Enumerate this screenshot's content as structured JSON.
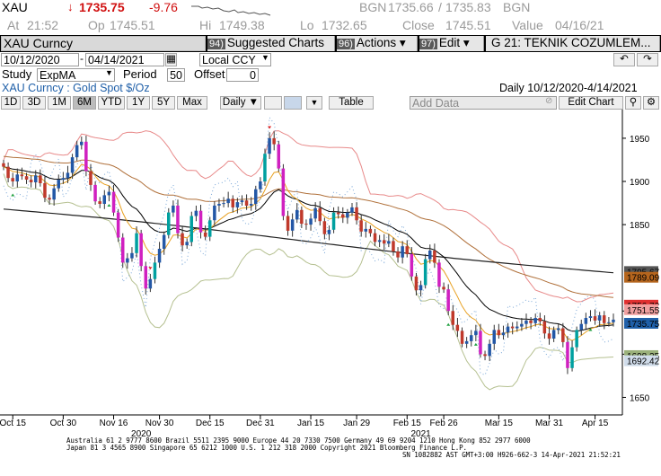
{
  "quote": {
    "symbol": "XAU",
    "arrow": "↓",
    "last": "1735.75",
    "change": "-9.76",
    "source": "BGN",
    "bid": "1735.66",
    "ask": "1735.83",
    "source2": "BGN",
    "time_label": "At",
    "time": "21:52",
    "open_label": "Op",
    "open": "1745.51",
    "high_label": "Hi",
    "high": "1749.38",
    "low_label": "Lo",
    "low": "1732.65",
    "close_label": "Close",
    "close": "1745.51",
    "value_label": "Value",
    "value_date": "04/16/21"
  },
  "cmdbar": {
    "ticker": "XAU Curncy",
    "menus": [
      {
        "num": "94)",
        "label": "Suggested Charts"
      },
      {
        "num": "96)",
        "label": "Actions ▾"
      },
      {
        "num": "97)",
        "label": "Edit ▾"
      },
      {
        "num": "",
        "label": "G 21: TEKNIK COZUMLEM..."
      }
    ]
  },
  "range": {
    "start": "10/12/2020",
    "end": "04/14/2021",
    "currency": "Local CCY"
  },
  "study": {
    "label": "Study",
    "value": "ExpMA",
    "period_label": "Period",
    "period": "50",
    "offset_label": "Offset",
    "offset": "0"
  },
  "security_line": "XAU Curncy : Gold Spot   $/Oz",
  "freq_range": "Daily    10/12/2020-4/14/2021",
  "period_buttons": [
    "1D",
    "3D",
    "1M",
    "6M",
    "YTD",
    "1Y",
    "5Y",
    "Max"
  ],
  "selected_period": "6M",
  "freq_select": "Daily ▼",
  "table_button": "Table",
  "add_data_placeholder": "Add Data",
  "edit_chart": "Edit Chart",
  "chart_data": {
    "type": "candlestick",
    "title": "XAU Curncy : Gold Spot $/Oz",
    "yticks": [
      1950,
      1900,
      1850,
      1750,
      1700,
      1650
    ],
    "ylim": [
      1638,
      1978
    ],
    "xticks": [
      "Oct 15",
      "Oct 30",
      "Nov 16",
      "Nov 30",
      "Dec 15",
      "Dec 31",
      "Jan 15",
      "Jan 29",
      "Feb 15",
      "Feb 26",
      "Mar 15",
      "Mar 31",
      "Apr 15"
    ],
    "year_labels": [
      "2020",
      "2021"
    ],
    "price_tags": [
      {
        "value": "1795.67",
        "color": "#555555"
      },
      {
        "value": "1789.09",
        "color": "#b5651d"
      },
      {
        "value": "1756.72",
        "color": "#e03030"
      },
      {
        "value": "1751.55",
        "color": "#f0a0a0"
      },
      {
        "value": "1735.75",
        "color": "#1f5fa8"
      },
      {
        "value": "1698.35",
        "color": "#9ab07a"
      },
      {
        "value": "1692.42",
        "color": "#d0dcea"
      }
    ],
    "close": [
      1917,
      1904,
      1900,
      1908,
      1906,
      1902,
      1899,
      1907,
      1898,
      1881,
      1879,
      1892,
      1902,
      1904,
      1910,
      1928,
      1942,
      1946,
      1912,
      1896,
      1877,
      1874,
      1884,
      1888,
      1864,
      1835,
      1806,
      1811,
      1817,
      1840,
      1802,
      1776,
      1787,
      1806,
      1822,
      1838,
      1864,
      1872,
      1840,
      1826,
      1830,
      1860,
      1866,
      1841,
      1836,
      1855,
      1872,
      1874,
      1875,
      1880,
      1870,
      1876,
      1878,
      1872,
      1874,
      1891,
      1900,
      1932,
      1950,
      1943,
      1915,
      1860,
      1843,
      1856,
      1867,
      1851,
      1850,
      1857,
      1869,
      1854,
      1839,
      1844,
      1864,
      1862,
      1858,
      1864,
      1870,
      1855,
      1842,
      1845,
      1840,
      1830,
      1832,
      1828,
      1831,
      1819,
      1812,
      1825,
      1816,
      1790,
      1774,
      1780,
      1810,
      1820,
      1806,
      1778,
      1775,
      1750,
      1734,
      1727,
      1712,
      1715,
      1722,
      1727,
      1700,
      1698,
      1712,
      1728,
      1722,
      1725,
      1732,
      1730,
      1732,
      1735,
      1739,
      1736,
      1742,
      1738,
      1724,
      1718,
      1728,
      1730,
      1714,
      1684,
      1708,
      1728,
      1735,
      1742,
      1744,
      1739,
      1745,
      1736,
      1737,
      1740
    ]
  },
  "footer": {
    "line1": "Australia 61 2 9777 8600 Brazil 5511 2395 9000 Europe 44 20 7330 7500 Germany 49 69 9204 1210 Hong Kong 852 2977 6000",
    "line2": "Japan 81 3 4565 8900        Singapore 65 6212 1000        U.S. 1 212 318 2000        Copyright 2021 Bloomberg Finance L.P.",
    "line3": "SN 1082882 AST  GMT+3:00 H926-662-3 14-Apr-2021 21:52:21"
  },
  "colors": {
    "up_candle": "#2357a6",
    "down_candle": "#c0392b",
    "ema": "#000000",
    "ema200": "#222222",
    "ema50": "#b0703a",
    "bb": "#b5c090",
    "upper": "#e88a8a"
  }
}
